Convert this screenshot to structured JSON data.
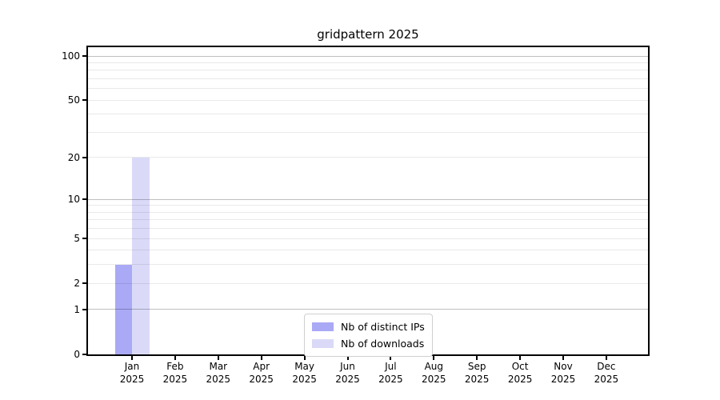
{
  "figure": {
    "background": "#ffffff",
    "title": "gridpattern 2025"
  },
  "chart_data": {
    "type": "bar",
    "title": "gridpattern 2025",
    "x": {
      "months": [
        "Jan",
        "Feb",
        "Mar",
        "Apr",
        "May",
        "Jun",
        "Jul",
        "Aug",
        "Sep",
        "Oct",
        "Nov",
        "Dec"
      ],
      "year": "2025"
    },
    "series": [
      {
        "name": "Nb of distinct IPs",
        "color": "#a9a9f6",
        "values": [
          3,
          0,
          0,
          0,
          0,
          0,
          0,
          0,
          0,
          0,
          0,
          0
        ]
      },
      {
        "name": "Nb of downloads",
        "color": "#dadaf8",
        "values": [
          20,
          0,
          0,
          0,
          0,
          0,
          0,
          0,
          0,
          0,
          0,
          0
        ]
      }
    ],
    "y_axis": {
      "scale": "log1p",
      "ticks": [
        0,
        1,
        2,
        5,
        10,
        20,
        50,
        100
      ],
      "ylim": [
        0,
        115
      ]
    },
    "grid": {
      "major_values": [
        1,
        10,
        100
      ],
      "minor_values": [
        2,
        3,
        4,
        5,
        6,
        7,
        8,
        9,
        20,
        30,
        40,
        50,
        60,
        70,
        80,
        90
      ],
      "major_color": "rgba(0,0,0,0.25)",
      "minor_color": "rgba(0,0,0,0.085)"
    },
    "legend": {
      "position": "lower center",
      "entries": [
        "Nb of distinct IPs",
        "Nb of downloads"
      ]
    },
    "colors": {
      "spine": "#000000",
      "text": "#000000",
      "bar_distinct_ips": "#a9a9f6",
      "bar_downloads": "#dadaf8"
    }
  }
}
